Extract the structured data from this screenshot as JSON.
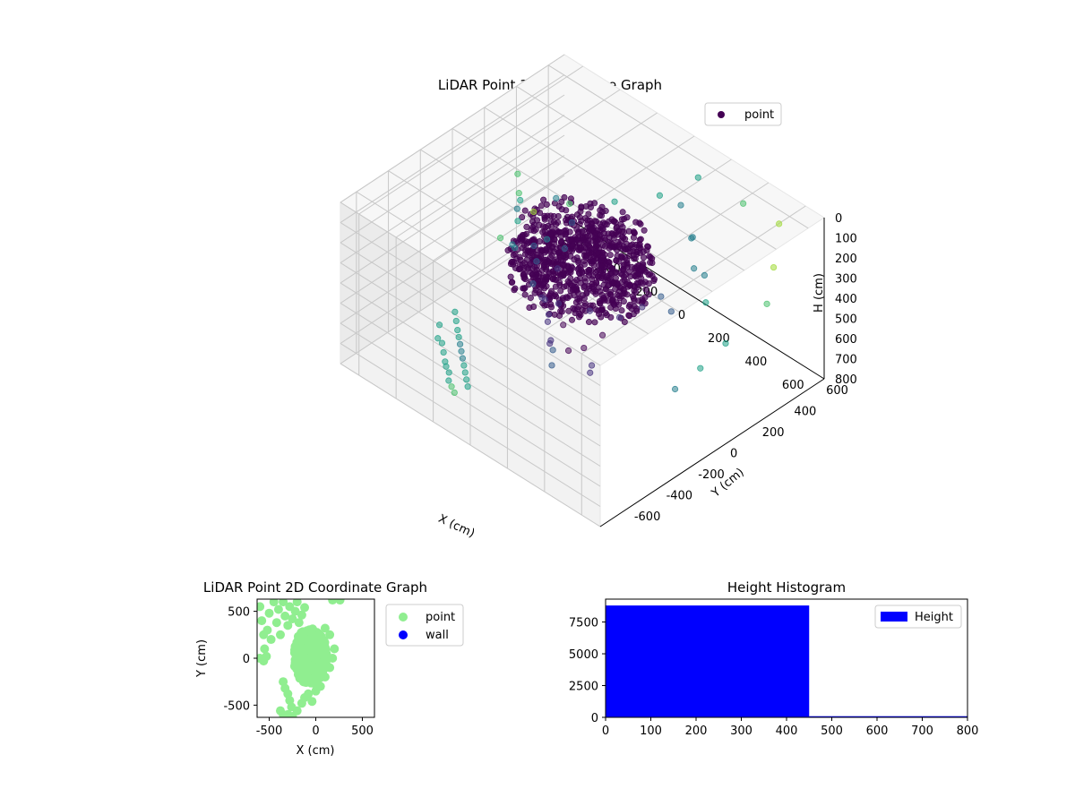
{
  "chart_data": [
    {
      "type": "scatter3d",
      "title": "LiDAR Point 3D Coordinate Graph",
      "xlabel": "X (cm)",
      "ylabel": "Y (cm)",
      "zlabel": "H (cm)",
      "xlim": [
        -700,
        700
      ],
      "ylim": [
        -700,
        700
      ],
      "zlim": [
        800,
        0
      ],
      "xticks": [
        -600,
        -400,
        -200,
        0,
        200,
        400,
        600
      ],
      "yticks": [
        -600,
        -400,
        -200,
        0,
        200,
        400,
        600
      ],
      "zticks": [
        0,
        100,
        200,
        300,
        400,
        500,
        600,
        700,
        800
      ],
      "grid": true,
      "legend": {
        "location": "upper-right",
        "entries": [
          {
            "label": "point",
            "color": "#440154"
          }
        ]
      },
      "colormap": "viridis",
      "dense_cluster": {
        "center": [
          -50,
          50
        ],
        "radius": 300,
        "height_range": [
          200,
          420
        ],
        "count": 8800
      },
      "series": [
        {
          "name": "point",
          "points": [
            [
              -650,
              350,
              380
            ],
            [
              -600,
              300,
              420
            ],
            [
              -550,
              250,
              400
            ],
            [
              -520,
              200,
              460
            ],
            [
              -480,
              150,
              350
            ],
            [
              -450,
              100,
              500
            ],
            [
              -420,
              50,
              440
            ],
            [
              -400,
              300,
              330
            ],
            [
              -380,
              220,
              480
            ],
            [
              -350,
              120,
              520
            ],
            [
              -330,
              80,
              410
            ],
            [
              -300,
              40,
              560
            ],
            [
              -280,
              260,
              360
            ],
            [
              -250,
              180,
              430
            ],
            [
              -220,
              100,
              470
            ],
            [
              -200,
              -20,
              540
            ],
            [
              -180,
              60,
              600
            ],
            [
              -150,
              -60,
              500
            ],
            [
              -120,
              20,
              650
            ],
            [
              -100,
              -100,
              560
            ],
            [
              -80,
              140,
              620
            ],
            [
              -60,
              -140,
              480
            ],
            [
              -40,
              -40,
              700
            ],
            [
              -20,
              -180,
              580
            ],
            [
              0,
              10,
              690
            ],
            [
              20,
              -220,
              520
            ],
            [
              40,
              80,
              640
            ],
            [
              60,
              -260,
              600
            ],
            [
              80,
              140,
              560
            ],
            [
              100,
              -300,
              480
            ],
            [
              120,
              -80,
              660
            ],
            [
              150,
              200,
              500
            ],
            [
              180,
              -160,
              620
            ],
            [
              200,
              260,
              450
            ],
            [
              -500,
              -200,
              780
            ],
            [
              -450,
              -250,
              760
            ],
            [
              -400,
              -300,
              740
            ],
            [
              -350,
              -350,
              720
            ],
            [
              -300,
              -400,
              700
            ],
            [
              -250,
              -450,
              680
            ],
            [
              -200,
              -500,
              660
            ],
            [
              -150,
              -550,
              640
            ],
            [
              -100,
              -600,
              620
            ],
            [
              -550,
              -150,
              790
            ],
            [
              -480,
              -320,
              770
            ],
            [
              -420,
              -380,
              750
            ],
            [
              -360,
              -440,
              730
            ],
            [
              -320,
              -480,
              710
            ],
            [
              -270,
              -520,
              690
            ],
            [
              -220,
              -580,
              670
            ],
            [
              -170,
              -620,
              650
            ],
            [
              -120,
              -660,
              630
            ],
            [
              -600,
              -100,
              800
            ],
            [
              -580,
              -220,
              790
            ],
            [
              -520,
              -300,
              780
            ],
            [
              150,
              550,
              40
            ],
            [
              350,
              600,
              80
            ],
            [
              500,
              650,
              120
            ],
            [
              600,
              500,
              200
            ],
            [
              650,
              400,
              300
            ],
            [
              600,
              200,
              420
            ],
            [
              550,
              100,
              520
            ],
            [
              500,
              0,
              600
            ],
            [
              400,
              300,
              250
            ],
            [
              300,
              350,
              300
            ],
            [
              250,
              400,
              200
            ],
            [
              450,
              250,
              330
            ],
            [
              350,
              150,
              380
            ],
            [
              200,
              450,
              260
            ],
            [
              100,
              500,
              180
            ],
            [
              -100,
              600,
              300
            ],
            [
              -300,
              550,
              420
            ],
            [
              -500,
              500,
              520
            ],
            [
              -650,
              450,
              620
            ],
            [
              -700,
              300,
              700
            ]
          ]
        }
      ]
    },
    {
      "type": "scatter",
      "title": "LiDAR Point 2D Coordinate Graph",
      "xlabel": "X (cm)",
      "ylabel": "Y (cm)",
      "xlim": [
        -630,
        630
      ],
      "ylim": [
        -630,
        630
      ],
      "xticks": [
        -500,
        0,
        500
      ],
      "yticks": [
        -500,
        0,
        500
      ],
      "legend": {
        "location": "outside-right",
        "entries": [
          {
            "label": "point",
            "color": "#90ee90"
          },
          {
            "label": "wall",
            "color": "#0000ff"
          }
        ]
      },
      "dense_cluster": {
        "center": [
          -60,
          20
        ],
        "radius": [
          180,
          300
        ],
        "count": 8800
      },
      "series": [
        {
          "name": "point",
          "color": "#90ee90",
          "points": [
            [
              -600,
              550
            ],
            [
              -580,
              400
            ],
            [
              -560,
              250
            ],
            [
              -550,
              100
            ],
            [
              -520,
              300
            ],
            [
              -500,
              480
            ],
            [
              -480,
              200
            ],
            [
              -450,
              600
            ],
            [
              -420,
              380
            ],
            [
              -400,
              520
            ],
            [
              -380,
              250
            ],
            [
              -350,
              600
            ],
            [
              -330,
              450
            ],
            [
              -300,
              350
            ],
            [
              -280,
              550
            ],
            [
              -250,
              420
            ],
            [
              -220,
              500
            ],
            [
              -200,
              600
            ],
            [
              -180,
              380
            ],
            [
              -150,
              460
            ],
            [
              -120,
              540
            ],
            [
              -600,
              0
            ],
            [
              -560,
              -30
            ],
            [
              -530,
              20
            ],
            [
              -350,
              -250
            ],
            [
              -330,
              -320
            ],
            [
              -300,
              -380
            ],
            [
              -280,
              -450
            ],
            [
              -260,
              -520
            ],
            [
              -380,
              -560
            ],
            [
              -350,
              -600
            ],
            [
              -320,
              -640
            ],
            [
              -300,
              -600
            ],
            [
              -250,
              -620
            ],
            [
              -200,
              -560
            ],
            [
              -150,
              -480
            ],
            [
              -120,
              -420
            ],
            [
              -80,
              -380
            ],
            [
              -40,
              -460
            ],
            [
              0,
              -350
            ],
            [
              50,
              -300
            ],
            [
              100,
              -200
            ],
            [
              150,
              -100
            ],
            [
              180,
              0
            ],
            [
              200,
              100
            ],
            [
              150,
              250
            ],
            [
              100,
              320
            ],
            [
              180,
              620
            ],
            [
              260,
              620
            ]
          ]
        },
        {
          "name": "wall",
          "color": "#0000ff",
          "points": []
        }
      ]
    },
    {
      "type": "bar",
      "title": "Height Histogram",
      "xlim": [
        0,
        800
      ],
      "ylim": [
        0,
        9300
      ],
      "xticks": [
        0,
        100,
        200,
        300,
        400,
        500,
        600,
        700,
        800
      ],
      "yticks": [
        0,
        2500,
        5000,
        7500
      ],
      "legend": {
        "location": "upper-right",
        "entries": [
          {
            "label": "Height",
            "color": "#0000ff"
          }
        ]
      },
      "bins": [
        {
          "x0": 0,
          "x1": 450,
          "count": 8800
        },
        {
          "x0": 450,
          "x1": 800,
          "count": 90
        }
      ]
    }
  ]
}
